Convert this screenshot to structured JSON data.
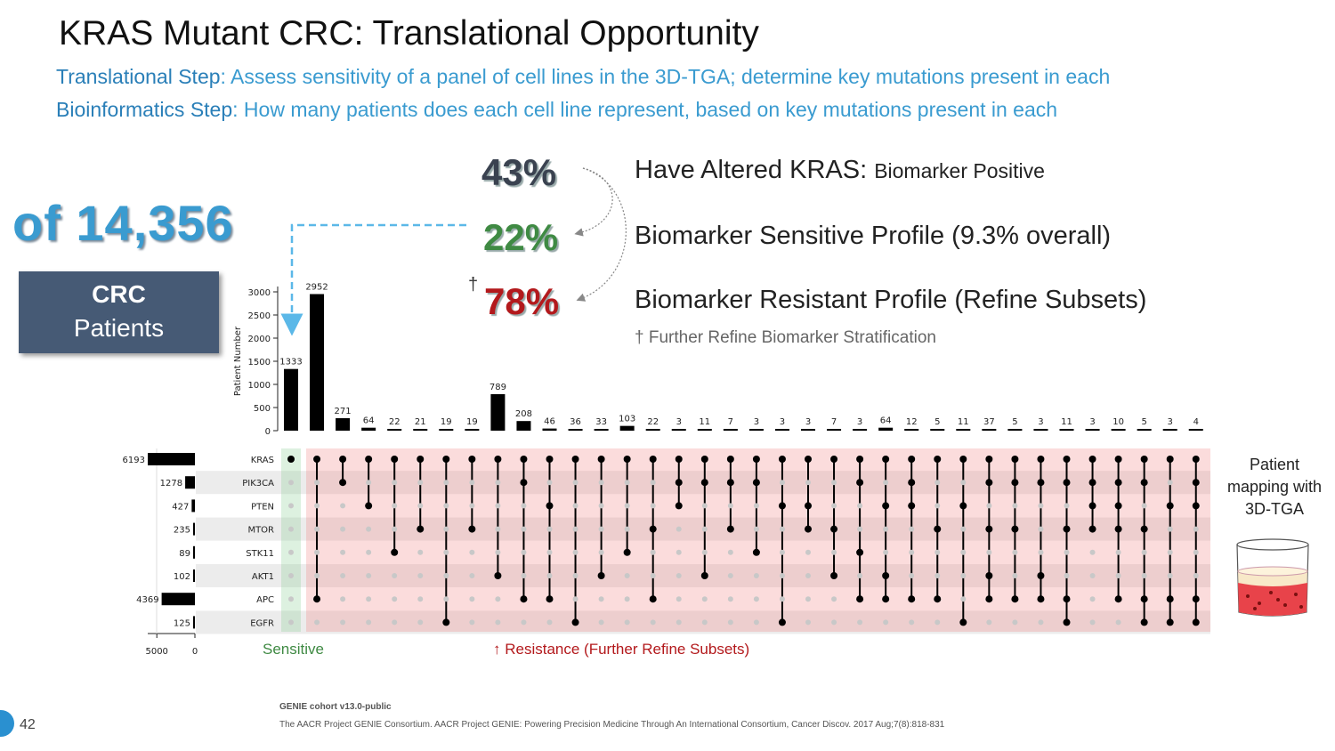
{
  "header": {
    "title": "KRAS Mutant CRC: Translational Opportunity",
    "step1_label": "Translational Step",
    "step1_text": ": Assess sensitivity of a panel of cell lines in the 3D-TGA; determine key mutations present in each",
    "step2_label": "Bioinformatics Step",
    "step2_text": ": How many patients does each cell line represent, based on key mutations present in each"
  },
  "left_panel": {
    "total": "of 14,356",
    "box_line1": "CRC",
    "box_line2": "Patients"
  },
  "stats": [
    {
      "pct": "43%",
      "label": "Have Altered KRAS: ",
      "small": "Biomarker Positive"
    },
    {
      "pct": "22%",
      "label": "Biomarker Sensitive Profile (9.3% overall)",
      "small": ""
    },
    {
      "pct": "78%",
      "label": "Biomarker Resistant Profile (Refine Subsets)",
      "small": ""
    }
  ],
  "dagger": "†",
  "dagger_note": "† Further Refine Biomarker Stratification",
  "mapping_text": [
    "Patient",
    "mapping with",
    "3D-TGA"
  ],
  "sensitive_label": "Sensitive",
  "resistance_label": "↑ Resistance (Further Refine Subsets)",
  "footer": {
    "cohort": "GENIE cohort v13.0-public",
    "reference": "The AACR Project GENIE Consortium. AACR Project GENIE: Powering Precision Medicine Through An International Consortium, Cancer Discov. 2017 Aug;7(8):818-831",
    "page_number": "42"
  },
  "chart_data": {
    "type": "bar",
    "title": "",
    "ylabel": "Patient Number",
    "ylim": [
      0,
      3000
    ],
    "yticks": [
      0,
      500,
      1000,
      1500,
      2000,
      2500,
      3000
    ],
    "intersection_values": [
      1333,
      2952,
      271,
      64,
      22,
      21,
      19,
      19,
      789,
      208,
      46,
      36,
      33,
      103,
      22,
      3,
      11,
      7,
      3,
      3,
      3,
      7,
      3,
      64,
      12,
      5,
      11,
      37,
      5,
      3,
      11,
      3,
      10,
      5,
      3,
      4
    ],
    "genes": [
      "KRAS",
      "PIK3CA",
      "PTEN",
      "MTOR",
      "STK11",
      "AKT1",
      "APC",
      "EGFR"
    ],
    "set_sizes": [
      6193,
      1278,
      427,
      235,
      89,
      102,
      4369,
      125
    ],
    "set_size_axis_ticks": [
      5000,
      0
    ],
    "intersections": [
      [
        "KRAS"
      ],
      [
        "KRAS",
        "APC"
      ],
      [
        "KRAS",
        "PIK3CA"
      ],
      [
        "KRAS",
        "PTEN"
      ],
      [
        "KRAS",
        "STK11"
      ],
      [
        "KRAS",
        "MTOR"
      ],
      [
        "KRAS",
        "EGFR"
      ],
      [
        "KRAS",
        "MTOR"
      ],
      [
        "KRAS",
        "AKT1"
      ],
      [
        "KRAS",
        "PIK3CA",
        "APC"
      ],
      [
        "KRAS",
        "PTEN",
        "APC"
      ],
      [
        "KRAS",
        "EGFR"
      ],
      [
        "KRAS",
        "AKT1"
      ],
      [
        "KRAS",
        "STK11"
      ],
      [
        "KRAS",
        "MTOR",
        "APC"
      ],
      [
        "KRAS",
        "PIK3CA",
        "PTEN"
      ],
      [
        "KRAS",
        "PIK3CA",
        "AKT1"
      ],
      [
        "KRAS",
        "PIK3CA",
        "MTOR"
      ],
      [
        "KRAS",
        "PIK3CA",
        "STK11"
      ],
      [
        "KRAS",
        "PTEN",
        "EGFR"
      ],
      [
        "KRAS",
        "PTEN",
        "MTOR"
      ],
      [
        "KRAS",
        "MTOR",
        "AKT1"
      ],
      [
        "KRAS",
        "PIK3CA",
        "STK11",
        "APC"
      ],
      [
        "KRAS",
        "PTEN",
        "AKT1",
        "APC"
      ],
      [
        "KRAS",
        "PIK3CA",
        "PTEN",
        "APC"
      ],
      [
        "KRAS",
        "MTOR",
        "APC"
      ],
      [
        "KRAS",
        "PTEN",
        "EGFR"
      ],
      [
        "KRAS",
        "PIK3CA",
        "MTOR",
        "AKT1",
        "APC"
      ],
      [
        "KRAS",
        "PIK3CA",
        "MTOR",
        "APC"
      ],
      [
        "KRAS",
        "PIK3CA",
        "AKT1",
        "APC"
      ],
      [
        "KRAS",
        "PIK3CA",
        "MTOR",
        "APC",
        "EGFR"
      ],
      [
        "KRAS",
        "PIK3CA",
        "PTEN",
        "MTOR"
      ],
      [
        "KRAS",
        "PIK3CA",
        "PTEN",
        "MTOR",
        "APC"
      ],
      [
        "KRAS",
        "PIK3CA",
        "MTOR",
        "APC",
        "EGFR"
      ],
      [
        "KRAS",
        "PTEN",
        "APC",
        "EGFR"
      ],
      [
        "KRAS",
        "PIK3CA",
        "PTEN",
        "APC",
        "EGFR"
      ]
    ]
  }
}
